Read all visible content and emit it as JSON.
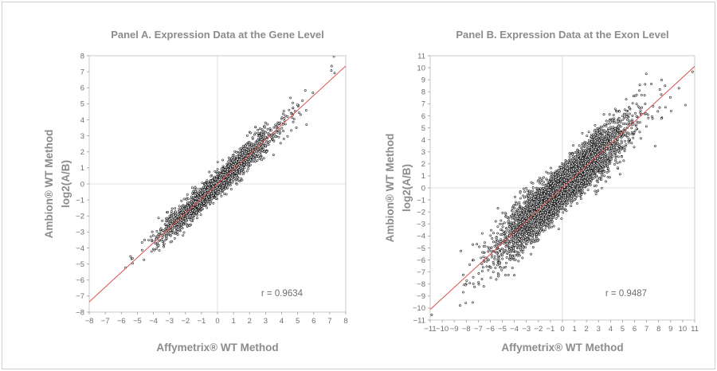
{
  "chart_data": [
    {
      "type": "scatter",
      "title": "Panel A. Expression Data at the Gene Level",
      "xlabel": "Affymetrix® WT Method",
      "ylabel_line1": "Ambion® WT Method",
      "ylabel_line2": "log2(A/B)",
      "xlim": [
        -8,
        8
      ],
      "ylim": [
        -8,
        8
      ],
      "x_ticks": [
        "-8",
        "-7",
        "-6",
        "-5",
        "-4",
        "-3",
        "-2",
        "-1",
        "0",
        "1",
        "2",
        "3",
        "4",
        "5",
        "6",
        "7",
        "8"
      ],
      "y_ticks": [
        "-8",
        "-7",
        "-6",
        "-5",
        "-4",
        "-3",
        "-2",
        "-1",
        "0",
        "1",
        "2",
        "3",
        "4",
        "5",
        "6",
        "7",
        "8"
      ],
      "annotation": "r = 0.9634",
      "correlation": 0.9634,
      "fit_line": {
        "slope": 0.92,
        "intercept": 0.0
      },
      "point_cloud": {
        "spread_x": 1.6,
        "noise": 0.33,
        "count": 2600,
        "marker": "open circle"
      },
      "zero_lines": true,
      "colors": {
        "points": "#1a1a1a",
        "fit_line": "#d9534f",
        "text": "#8c8c8c"
      }
    },
    {
      "type": "scatter",
      "title": "Panel B. Expression Data at the Exon Level",
      "xlabel": "Affymetrix® WT Method",
      "ylabel_line1": "Ambion® WT Method",
      "ylabel_line2": "log2(A/B)",
      "xlim": [
        -11,
        11
      ],
      "ylim": [
        -11,
        11
      ],
      "x_ticks": [
        "-11",
        "-10",
        "-9",
        "-8",
        "-7",
        "-6",
        "-5",
        "-4",
        "-3",
        "-2",
        "-1",
        "0",
        "1",
        "2",
        "3",
        "4",
        "5",
        "6",
        "7",
        "8",
        "9",
        "10",
        "11"
      ],
      "y_ticks": [
        "-11",
        "-10",
        "-9",
        "-8",
        "-7",
        "-6",
        "-5",
        "-4",
        "-3",
        "-2",
        "-1",
        "0",
        "1",
        "2",
        "3",
        "4",
        "5",
        "6",
        "7",
        "8",
        "9",
        "10",
        "11"
      ],
      "annotation": "r = 0.9487",
      "correlation": 0.9487,
      "fit_line": {
        "slope": 0.92,
        "intercept": 0.0
      },
      "point_cloud": {
        "spread_x": 2.3,
        "noise": 0.75,
        "count": 6000,
        "marker": "open circle"
      },
      "zero_lines": true,
      "colors": {
        "points": "#1a1a1a",
        "fit_line": "#d9534f",
        "text": "#8c8c8c"
      }
    }
  ]
}
